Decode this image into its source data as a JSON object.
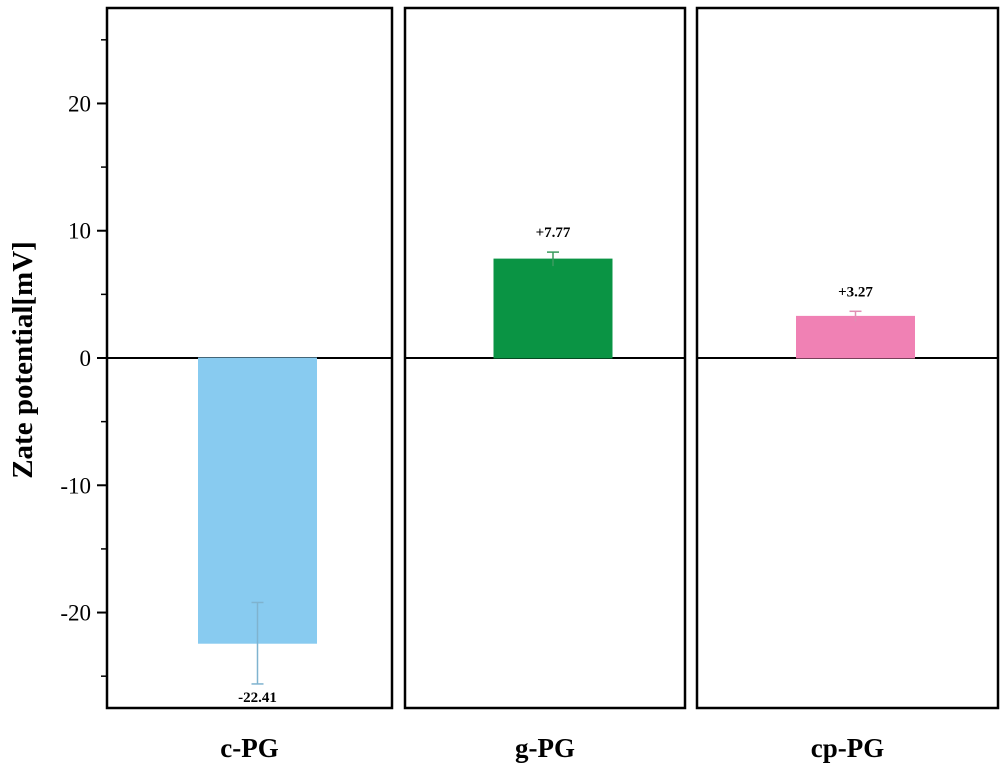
{
  "chart_data": {
    "type": "bar",
    "categories": [
      "c-PG",
      "g-PG",
      "cp-PG"
    ],
    "values": [
      -22.41,
      7.77,
      3.27
    ],
    "errors": [
      3.2,
      0.55,
      0.4
    ],
    "value_labels": [
      "-22.41",
      "+7.77",
      "+3.27"
    ],
    "colors": [
      "#88cbf0",
      "#0a9444",
      "#f081b4"
    ],
    "error_colors": [
      "#7fb3cf",
      "#3a9b5e",
      "#e08fb3"
    ],
    "title": "",
    "xlabel": "",
    "ylabel": "Zate potential[mV]",
    "ylim": [
      -27.5,
      27.5
    ],
    "yticks": [
      -20,
      -10,
      0,
      10,
      20
    ],
    "ytick_labels": [
      "-20",
      "-10",
      "0",
      "10",
      "20"
    ],
    "minor_ticks": [
      -25,
      -15,
      -5,
      5,
      15,
      25
    ],
    "grid": false,
    "legend": "none",
    "layout": "three side-by-side panels sharing one y axis"
  }
}
